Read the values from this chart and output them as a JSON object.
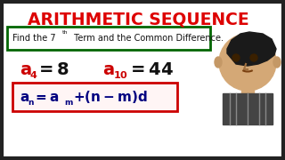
{
  "title": "ARITHMETIC SEQUENCE",
  "title_color": "#dd0000",
  "title_fontsize": 13.5,
  "subtitle_box_color": "#006600",
  "formula_box_color": "#cc0000",
  "formula_box_fill": "#ffffff",
  "bg_color": "#ffffff",
  "border_color": "#222222",
  "red_color": "#cc0000",
  "black_color": "#111111",
  "dark_blue": "#000080",
  "char_bg": "#e8e8e8",
  "subtitle_fontsize": 7.0,
  "eq_fontsize": 14,
  "eq_sub_fontsize": 8,
  "formula_fontsize": 11,
  "formula_sub_fontsize": 6.5
}
